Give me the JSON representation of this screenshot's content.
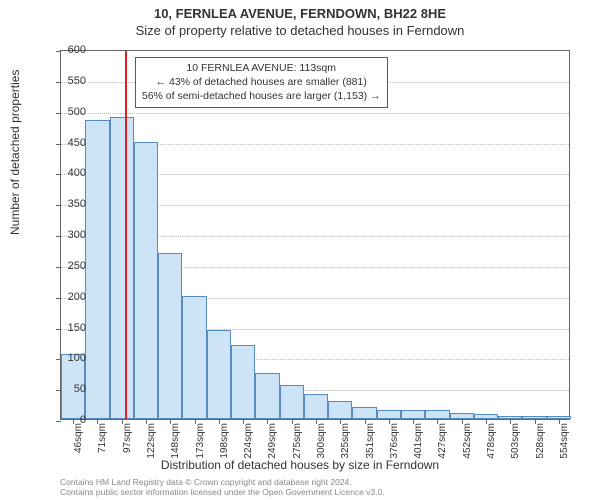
{
  "title": "10, FERNLEA AVENUE, FERNDOWN, BH22 8HE",
  "subtitle": "Size of property relative to detached houses in Ferndown",
  "y_axis_label": "Number of detached properties",
  "x_axis_label": "Distribution of detached houses by size in Ferndown",
  "chart": {
    "type": "histogram",
    "ylim": [
      0,
      600
    ],
    "ytick_step": 50,
    "background_color": "#ffffff",
    "grid_color": "#bbbbbb",
    "axis_color": "#666666",
    "bar_fill": "#cde4f7",
    "bar_border": "#5a8bbf",
    "categories": [
      "46sqm",
      "71sqm",
      "97sqm",
      "122sqm",
      "148sqm",
      "173sqm",
      "198sqm",
      "224sqm",
      "249sqm",
      "275sqm",
      "300sqm",
      "325sqm",
      "351sqm",
      "376sqm",
      "401sqm",
      "427sqm",
      "452sqm",
      "478sqm",
      "503sqm",
      "528sqm",
      "554sqm"
    ],
    "values": [
      105,
      485,
      490,
      450,
      270,
      200,
      145,
      120,
      75,
      55,
      40,
      30,
      20,
      15,
      15,
      15,
      10,
      8,
      5,
      5,
      5
    ]
  },
  "reference": {
    "color": "#e02020",
    "bin_index_after": 2,
    "fraction_into_next": 0.63,
    "box": {
      "line1": "10 FERNLEA AVENUE: 113sqm",
      "line2": "← 43% of detached houses are smaller (881)",
      "line3": "56% of semi-detached houses are larger (1,153) →"
    }
  },
  "footer": {
    "line1": "Contains HM Land Registry data © Crown copyright and database right 2024.",
    "line2": "Contains public sector information licensed under the Open Government Licence v3.0."
  }
}
